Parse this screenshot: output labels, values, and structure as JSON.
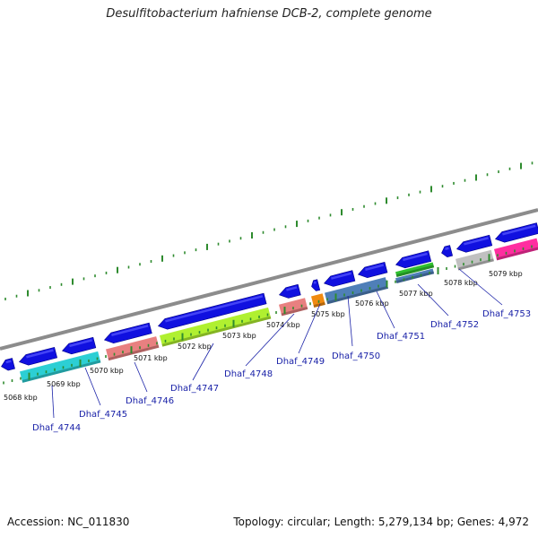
{
  "title": "Desulfitobacterium hafniense DCB-2, complete genome",
  "footer": {
    "accession": "Accession: NC_011830",
    "summary": "Topology: circular; Length: 5,279,134 bp; Genes: 4,972"
  },
  "colors": {
    "backbone": "#8c8c8c",
    "tick": "#2e8b2e",
    "forward_gene": "#1010e0",
    "leader": "#1a22a8"
  },
  "kbp_labels": [
    "5068 kbp",
    "5069 kbp",
    "5070 kbp",
    "5071 kbp",
    "5072 kbp",
    "5073 kbp",
    "5074 kbp",
    "5075 kbp",
    "5076 kbp",
    "5077 kbp",
    "5078 kbp",
    "5079 kbp"
  ],
  "genes": [
    {
      "label": "Dhaf_4744",
      "color": "#2ccfd4"
    },
    {
      "label": "Dhaf_4745",
      "color": "#2ccfd4"
    },
    {
      "label": "Dhaf_4746",
      "color": "#e88080"
    },
    {
      "label": "Dhaf_4747",
      "color": "#b0f030"
    },
    {
      "label": "Dhaf_4748",
      "color": "#e88080"
    },
    {
      "label": "Dhaf_4749",
      "color": "#f08a10"
    },
    {
      "label": "Dhaf_4750",
      "color": "#4f7fb8"
    },
    {
      "label": "Dhaf_4751",
      "color": "#4f7fb8"
    },
    {
      "label": "Dhaf_4752",
      "color": "#30c030"
    },
    {
      "label": "Dhaf_4753",
      "color": "#ff2ea0"
    }
  ]
}
